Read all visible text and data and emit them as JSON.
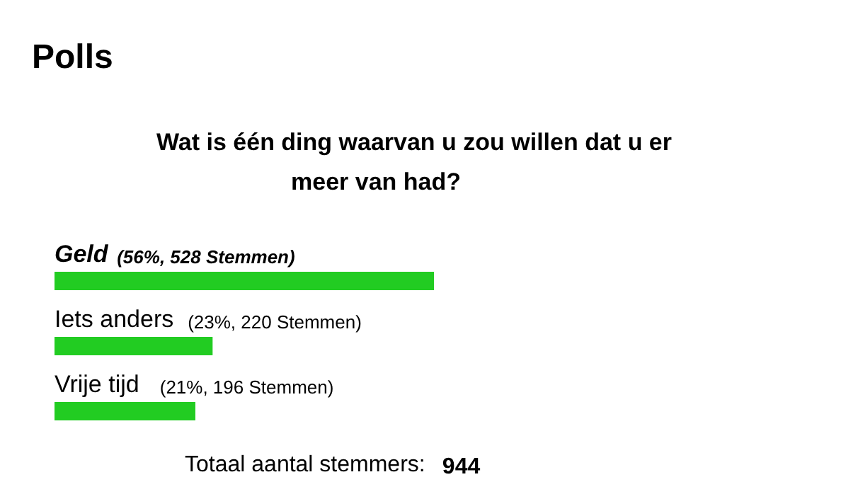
{
  "chart_data": {
    "type": "bar",
    "orientation": "horizontal",
    "title": "Polls",
    "subtitle": "Wat is één ding waarvan u zou willen dat u er\nmeer van had?",
    "categories": [
      "Geld",
      "Iets anders",
      "Vrije tijd"
    ],
    "values": [
      528,
      220,
      196
    ],
    "value_labels": [
      "(56%, 528 Stemmen)",
      "(23%, 220 Stemmen)",
      "(21%, 196 Stemmen)"
    ],
    "color": "#22cc22",
    "annotations": [
      "Totaal aantal stemmers: 944"
    ]
  }
}
